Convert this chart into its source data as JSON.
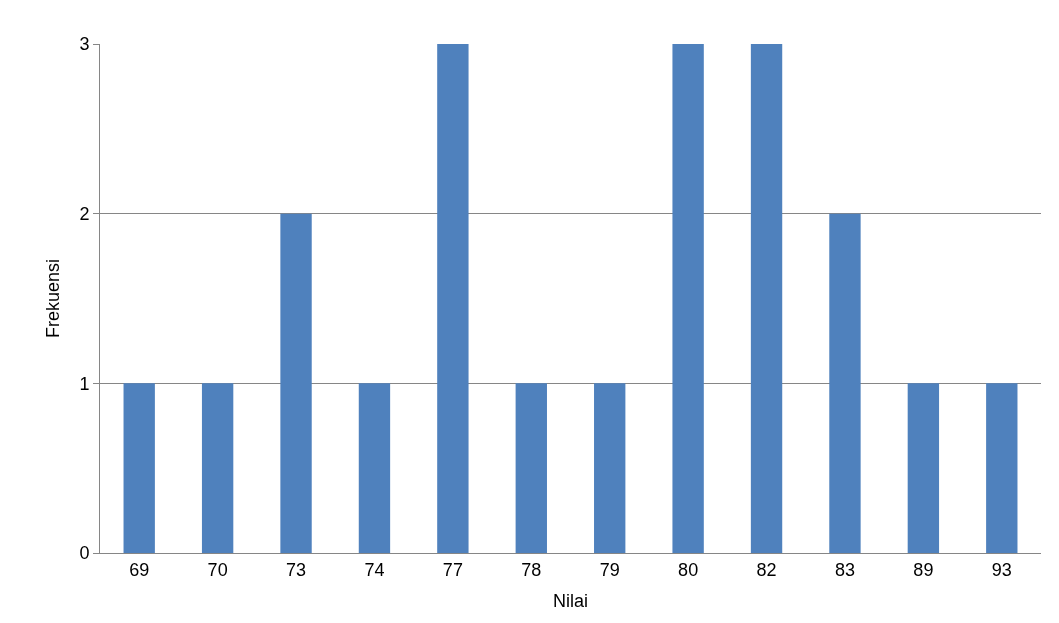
{
  "chart_data": {
    "type": "bar",
    "xlabel": "Nilai",
    "ylabel": "Frekuensi",
    "categories": [
      "69",
      "70",
      "73",
      "74",
      "77",
      "78",
      "79",
      "80",
      "82",
      "83",
      "89",
      "93"
    ],
    "values": [
      1,
      1,
      2,
      1,
      3,
      1,
      1,
      3,
      3,
      2,
      1,
      1
    ],
    "color": "#4f81bd",
    "ylim": [
      0,
      3
    ],
    "yticks": [
      0,
      1,
      2,
      3
    ],
    "grid": "y"
  }
}
